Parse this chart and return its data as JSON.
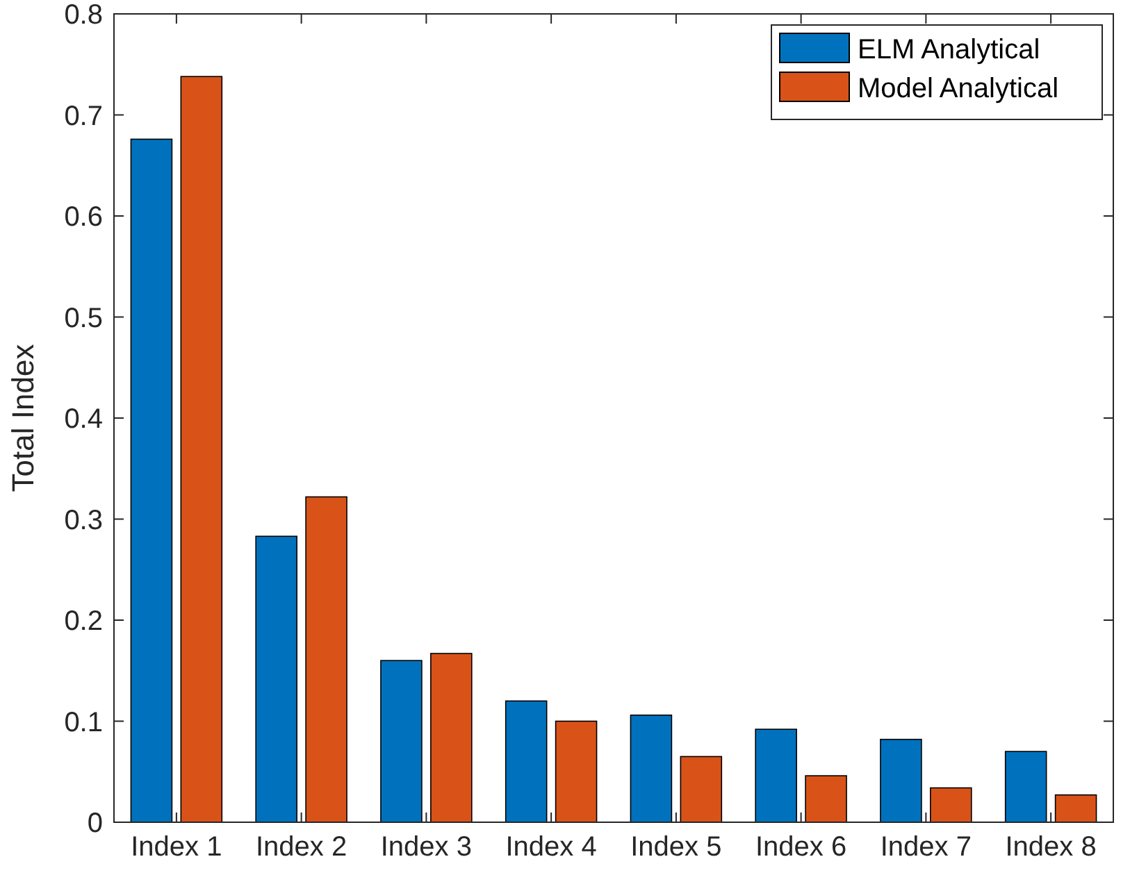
{
  "chart_data": {
    "type": "bar",
    "ylabel": "Total Index",
    "categories": [
      "Index 1",
      "Index 2",
      "Index 3",
      "Index 4",
      "Index 5",
      "Index 6",
      "Index 7",
      "Index 8"
    ],
    "series": [
      {
        "name": "ELM Analytical",
        "color": "#0072bd",
        "values": [
          0.676,
          0.283,
          0.16,
          0.12,
          0.106,
          0.092,
          0.082,
          0.07
        ]
      },
      {
        "name": "Model Analytical",
        "color": "#d95319",
        "values": [
          0.738,
          0.322,
          0.167,
          0.1,
          0.065,
          0.046,
          0.034,
          0.027
        ]
      }
    ],
    "ylim": [
      0,
      0.8
    ],
    "yticks": [
      0,
      0.1,
      0.2,
      0.3,
      0.4,
      0.5,
      0.6,
      0.7,
      0.8
    ],
    "grid": false,
    "legend": "top right"
  }
}
